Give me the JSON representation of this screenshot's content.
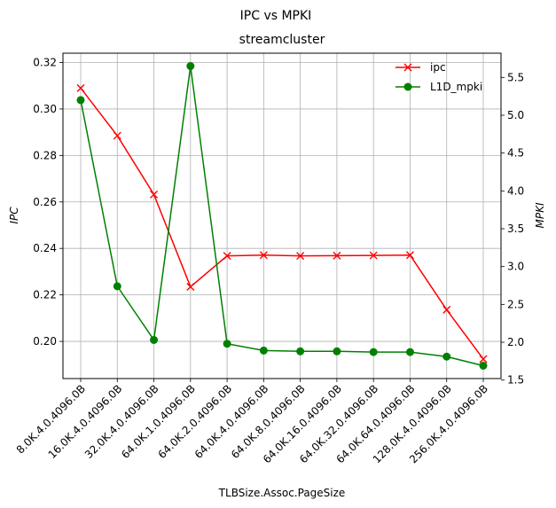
{
  "chart_data": {
    "type": "line",
    "suptitle": "IPC vs MPKI",
    "title": "streamcluster",
    "xlabel": "TLBSize.Assoc.PageSize",
    "ylabel_left": "IPC",
    "ylabel_right": "MPKI",
    "categories": [
      "8.0K.4.0.4096.0B",
      "16.0K.4.0.4096.0B",
      "32.0K.4.0.4096.0B",
      "64.0K.1.0.4096.0B",
      "64.0K.2.0.4096.0B",
      "64.0K.4.0.4096.0B",
      "64.0K.8.0.4096.0B",
      "64.0K.16.0.4096.0B",
      "64.0K.32.0.4096.0B",
      "64.0K.64.0.4096.0B",
      "128.0K.4.0.4096.0B",
      "256.0K.4.0.4096.0B"
    ],
    "left_axis": {
      "ylim": [
        0.184,
        0.324
      ],
      "ticks": [
        0.2,
        0.22,
        0.24,
        0.26,
        0.28,
        0.3,
        0.32
      ],
      "tick_labels": [
        "0.20",
        "0.22",
        "0.24",
        "0.26",
        "0.28",
        "0.30",
        "0.32"
      ]
    },
    "right_axis": {
      "ylim": [
        1.52,
        5.82
      ],
      "ticks": [
        1.5,
        2.0,
        2.5,
        3.0,
        3.5,
        4.0,
        4.5,
        5.0,
        5.5
      ],
      "tick_labels": [
        "1.5",
        "2.0",
        "2.5",
        "3.0",
        "3.5",
        "4.0",
        "4.5",
        "5.0",
        "5.5"
      ]
    },
    "series": [
      {
        "name": "ipc",
        "axis": "left",
        "color": "#ff0000",
        "marker": "x",
        "values": [
          0.309,
          0.2885,
          0.2632,
          0.2235,
          0.2368,
          0.2371,
          0.2368,
          0.2369,
          0.237,
          0.2371,
          0.2136,
          0.1924
        ]
      },
      {
        "name": "L1D_mpki",
        "axis": "right",
        "color": "#008000",
        "marker": "o",
        "values": [
          5.2,
          2.74,
          2.03,
          5.65,
          1.98,
          1.89,
          1.88,
          1.88,
          1.87,
          1.87,
          1.81,
          1.69
        ]
      }
    ],
    "grid": true,
    "legend": "top-right"
  }
}
